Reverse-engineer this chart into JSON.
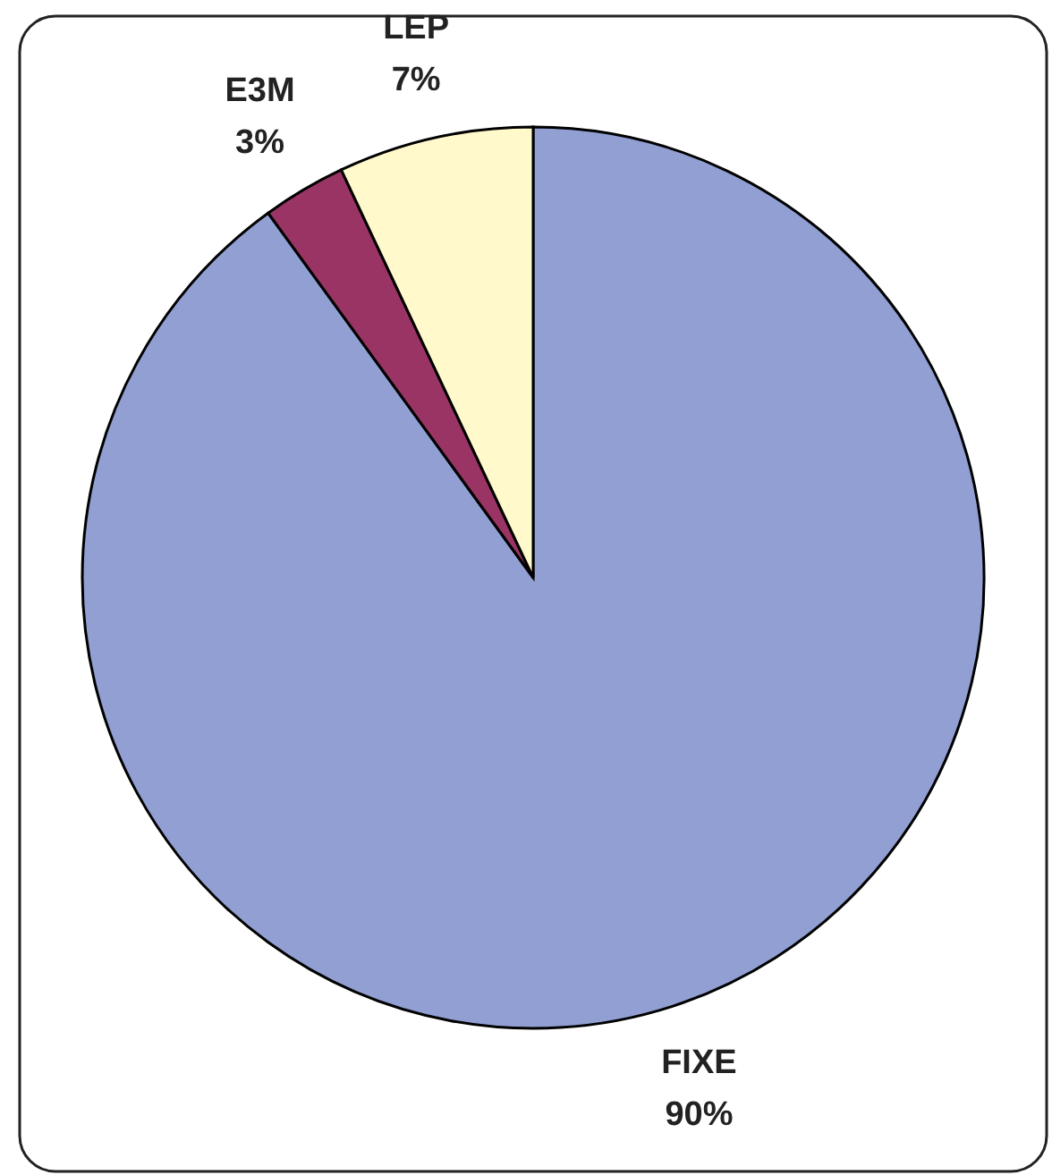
{
  "chart_data": {
    "type": "pie",
    "categories": [
      "FIXE",
      "E3M",
      "LEP"
    ],
    "values": [
      90,
      3,
      7
    ],
    "colors": [
      "#919fd2",
      "#9a3464",
      "#fff9cc"
    ],
    "value_labels": [
      "90%",
      "3%",
      "7%"
    ]
  }
}
